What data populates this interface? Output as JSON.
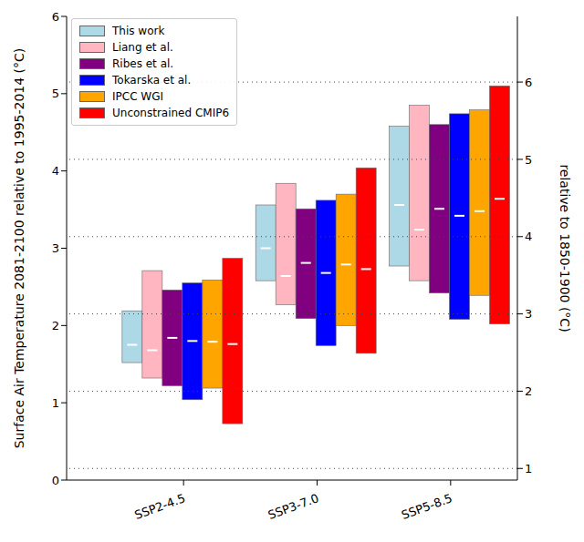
{
  "chart_data": {
    "type": "bar",
    "categories": [
      "SSP2-4.5",
      "SSP3-7.0",
      "SSP5-8.5"
    ],
    "y_label": "Surface Air Temperature 2081-2100 relative to 1995-2014 (°C)",
    "y2_label": "relative to 1850-1900 (°C)",
    "ylim": [
      0,
      6
    ],
    "yticks": [
      0,
      1,
      2,
      3,
      4,
      5,
      6
    ],
    "y2lim": [
      0.85,
      6.85
    ],
    "y2ticks": [
      1,
      2,
      3,
      4,
      5,
      6
    ],
    "grid": true,
    "legend": "upper left",
    "series": [
      {
        "name": "This work",
        "color": "#add8e6",
        "values": [
          [
            1.52,
            2.19
          ],
          [
            2.58,
            3.56
          ],
          [
            2.77,
            4.58
          ]
        ],
        "median": [
          1.75,
          3.0,
          3.56
        ]
      },
      {
        "name": "Liang et al.",
        "color": "#ffb6c1",
        "values": [
          [
            1.32,
            2.71
          ],
          [
            2.27,
            3.84
          ],
          [
            2.58,
            4.85
          ]
        ],
        "median": [
          1.68,
          2.64,
          3.24
        ]
      },
      {
        "name": "Ribes et al.",
        "color": "#800080",
        "values": [
          [
            1.22,
            2.46
          ],
          [
            2.09,
            3.51
          ],
          [
            2.42,
            4.6
          ]
        ],
        "median": [
          1.84,
          2.81,
          3.51
        ]
      },
      {
        "name": "Tokarska et al.",
        "color": "#0000ff",
        "values": [
          [
            1.04,
            2.55
          ],
          [
            1.74,
            3.62
          ],
          [
            2.08,
            4.74
          ]
        ],
        "median": [
          1.8,
          2.68,
          3.42
        ]
      },
      {
        "name": "IPCC WGI",
        "color": "#ffa500",
        "values": [
          [
            1.19,
            2.59
          ],
          [
            2.0,
            3.7
          ],
          [
            2.39,
            4.79
          ]
        ],
        "median": [
          1.79,
          2.79,
          3.48
        ]
      },
      {
        "name": "Unconstrained CMIP6",
        "color": "#ff0000",
        "values": [
          [
            0.73,
            2.87
          ],
          [
            1.64,
            4.04
          ],
          [
            2.02,
            5.1
          ]
        ],
        "median": [
          1.76,
          2.73,
          3.64
        ]
      }
    ]
  }
}
